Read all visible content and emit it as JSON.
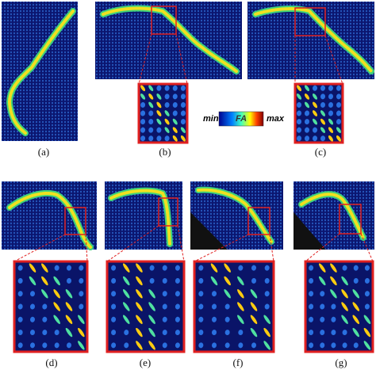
{
  "panels": [
    {
      "label": "(a)"
    },
    {
      "label": "(b)"
    },
    {
      "label": "(c)"
    },
    {
      "label": "(d)"
    },
    {
      "label": "(e)"
    },
    {
      "label": "(f)"
    },
    {
      "label": "(g)"
    }
  ],
  "colorbar": {
    "min": "min",
    "title": "FA",
    "max": "max"
  }
}
